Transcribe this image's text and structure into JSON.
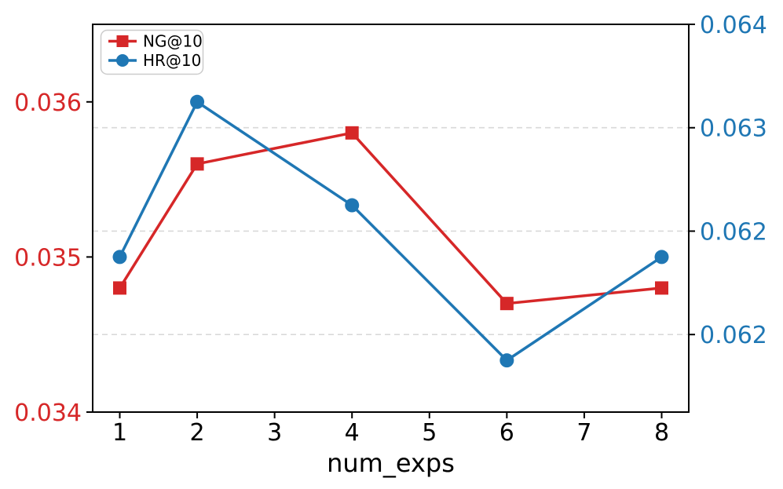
{
  "figure": {
    "background": "#ffffff",
    "spine_color": "#000000"
  },
  "legend": {
    "position": "upper-left",
    "items": [
      {
        "label": "NG@10",
        "color": "#d62728",
        "marker": "square"
      },
      {
        "label": "HR@10",
        "color": "#1f77b4",
        "marker": "circle"
      }
    ]
  },
  "chart_data": {
    "type": "line",
    "title": "",
    "xlabel": "num_exps",
    "ylabel_left": "",
    "ylabel_right": "",
    "x": [
      1,
      2,
      4,
      6,
      8
    ],
    "series": [
      {
        "name": "NG@10",
        "axis": "left",
        "color": "#d62728",
        "marker": "square",
        "values": [
          0.0348,
          0.0356,
          0.0358,
          0.0347,
          0.0348
        ]
      },
      {
        "name": "HR@10",
        "axis": "right",
        "color": "#1f77b4",
        "marker": "circle",
        "values": [
          0.0622,
          0.0634,
          0.0626,
          0.0614,
          0.0622
        ]
      }
    ],
    "x_axis": {
      "min": 0.65,
      "max": 8.35,
      "ticks": [
        1,
        2,
        3,
        4,
        5,
        6,
        7,
        8
      ],
      "tick_labels": [
        "1",
        "2",
        "3",
        "4",
        "5",
        "6",
        "7",
        "8"
      ],
      "color": "#000000"
    },
    "left_axis": {
      "min": 0.034,
      "max": 0.0365,
      "ticks": [
        0.034,
        0.035,
        0.036
      ],
      "tick_labels": [
        "0.034",
        "0.035",
        "0.036"
      ],
      "color": "#d62728"
    },
    "right_axis": {
      "min": 0.061,
      "max": 0.064,
      "ticks": [
        0.0616,
        0.0624,
        0.0632,
        0.064
      ],
      "tick_labels": [
        "0.062",
        "0.062",
        "0.063",
        "0.064"
      ],
      "color": "#1f77b4"
    },
    "grid": {
      "on": true,
      "source_axis": "right",
      "ticks": [
        0.0616,
        0.0624,
        0.0632
      ],
      "style": "dashed",
      "color": "#d9d9d9"
    },
    "legend_position": "upper-left"
  }
}
